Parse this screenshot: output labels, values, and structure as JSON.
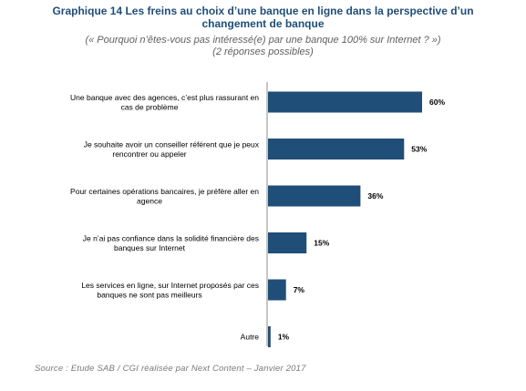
{
  "chart_data": {
    "type": "bar",
    "orientation": "horizontal",
    "title_line1": "Graphique 14 Les freins au choix d’une banque en ligne dans la perspective d’un",
    "title_line2": "changement de banque",
    "subtitle_line1": "(« Pourquoi n’êtes-vous pas intéressé(e) par une banque 100% sur Internet ? »)",
    "subtitle_line2": "(2 réponses possibles)",
    "categories": [
      [
        "Une banque avec des agences, c’est plus rassurant en",
        "cas de problème"
      ],
      [
        "Je souhaite avoir un conseiller référent que je peux",
        "rencontrer ou appeler"
      ],
      [
        "Pour certaines opérations bancaires, je préfère aller en",
        "agence"
      ],
      [
        "Je n’ai pas confiance dans la solidité financière des",
        "banques sur Internet"
      ],
      [
        "Les services en ligne, sur Internet proposés par ces",
        "banques ne sont pas meilleurs"
      ],
      [
        "Autre"
      ]
    ],
    "values": [
      60,
      53,
      36,
      15,
      7,
      1
    ],
    "value_labels": [
      "60%",
      "53%",
      "36%",
      "15%",
      "7%",
      "1%"
    ],
    "xlim": [
      0,
      60
    ],
    "grid": false,
    "legend": "none",
    "bar_color": "#1f4e79",
    "source": "Source : Etude SAB / CGI réalisée par Next Content – Janvier 2017"
  }
}
